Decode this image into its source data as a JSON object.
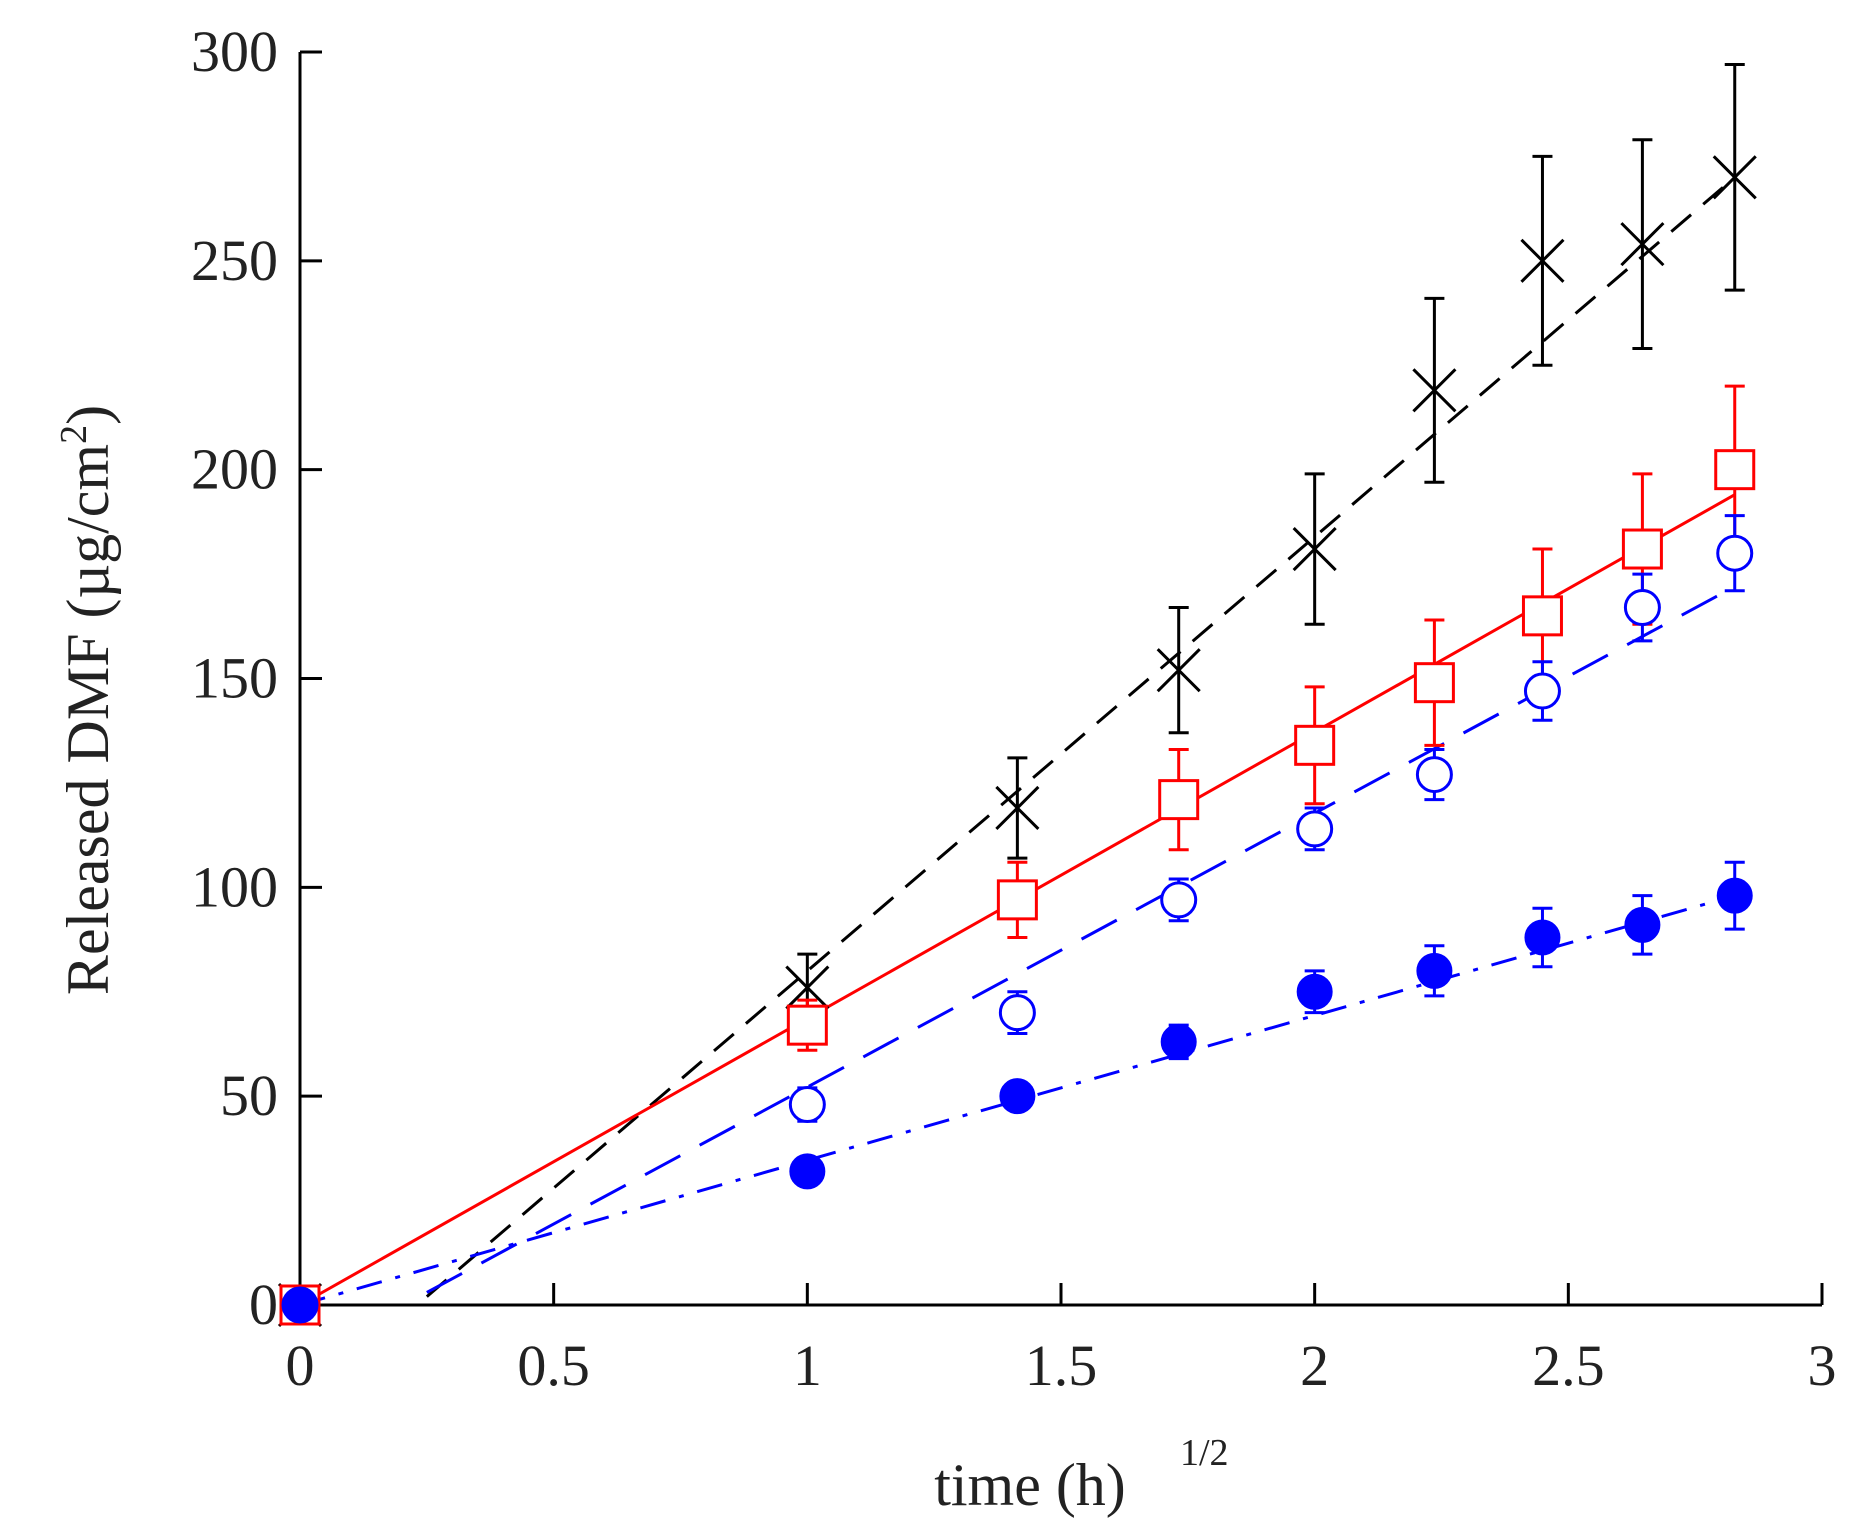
{
  "chart_data": {
    "type": "scatter",
    "title": "",
    "xlabel": "time (h)",
    "xlabel_superscript": "1/2",
    "ylabel": "Released DMF (µg/cm",
    "ylabel_superscript": "2",
    "ylabel_suffix": ")",
    "xlim": [
      0,
      3
    ],
    "ylim": [
      0,
      300
    ],
    "xticks": [
      0,
      0.5,
      1,
      1.5,
      2,
      2.5,
      3
    ],
    "xtick_labels": [
      "0",
      "0.5",
      "1",
      "1.5",
      "2",
      "2.5",
      "3"
    ],
    "yticks": [
      0,
      50,
      100,
      150,
      200,
      250,
      300
    ],
    "ytick_labels": [
      "0",
      "50",
      "100",
      "150",
      "200",
      "250",
      "300"
    ],
    "grid": false,
    "series": [
      {
        "name": "cross series",
        "marker": "x",
        "color": "#000000",
        "x": [
          0,
          1,
          1.414,
          1.732,
          2,
          2.236,
          2.449,
          2.646,
          2.828
        ],
        "y": [
          0,
          76,
          119,
          152,
          181,
          219,
          250,
          254,
          270
        ],
        "err": [
          0,
          8,
          12,
          15,
          18,
          22,
          25,
          25,
          27
        ],
        "fit": {
          "style": "dash",
          "x": [
            0.25,
            2.828
          ],
          "y": [
            2,
            270
          ]
        }
      },
      {
        "name": "open square series",
        "marker": "square-open",
        "color": "#ff0000",
        "x": [
          0,
          1,
          1.414,
          1.732,
          2,
          2.236,
          2.449,
          2.646,
          2.828
        ],
        "y": [
          0,
          67,
          97,
          121,
          134,
          149,
          165,
          181,
          200
        ],
        "err": [
          0,
          6,
          9,
          12,
          14,
          15,
          16,
          18,
          20
        ],
        "fit": {
          "style": "solid",
          "x": [
            0,
            2.828
          ],
          "y": [
            0,
            194
          ]
        }
      },
      {
        "name": "open circle series",
        "marker": "circle-open",
        "color": "#0000ff",
        "x": [
          0,
          1,
          1.414,
          1.732,
          2,
          2.236,
          2.449,
          2.646,
          2.828
        ],
        "y": [
          0,
          48,
          70,
          97,
          114,
          127,
          147,
          167,
          180
        ],
        "err": [
          0,
          4,
          5,
          5,
          5,
          6,
          7,
          8,
          9
        ],
        "fit": {
          "style": "longdash",
          "x": [
            0.25,
            2.828
          ],
          "y": [
            3,
            172
          ]
        }
      },
      {
        "name": "filled circle series",
        "marker": "circle-filled",
        "color": "#0000ff",
        "x": [
          0,
          1,
          1.414,
          1.732,
          2,
          2.236,
          2.449,
          2.646,
          2.828
        ],
        "y": [
          0,
          32,
          50,
          63,
          75,
          80,
          88,
          91,
          98
        ],
        "err": [
          0,
          3,
          3,
          4,
          5,
          6,
          7,
          7,
          8
        ],
        "fit": {
          "style": "dashdot",
          "x": [
            0,
            2.828
          ],
          "y": [
            0,
            98
          ]
        }
      }
    ]
  }
}
